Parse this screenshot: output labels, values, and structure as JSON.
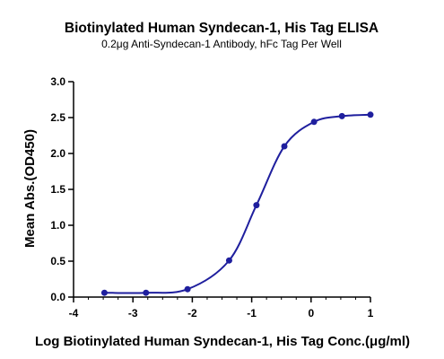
{
  "chart_data": {
    "type": "line",
    "title": "Biotinylated Human Syndecan-1, His Tag ELISA",
    "subtitle": "0.2μg Anti-Syndecan-1 Antibody, hFc Tag Per Well",
    "xlabel": "Log Biotinylated Human Syndecan-1, His Tag Conc.(μg/ml)",
    "ylabel": "Mean Abs.(OD450)",
    "xlim": [
      -4,
      1
    ],
    "ylim": [
      0,
      3
    ],
    "xticks": [
      "-4",
      "-3",
      "-2",
      "-1",
      "0",
      "1"
    ],
    "yticks": [
      "0.0",
      "0.5",
      "1.0",
      "1.5",
      "2.0",
      "2.5",
      "3.0"
    ],
    "grid": false,
    "color": "#1f1f9e",
    "series": [
      {
        "x": [
          -3.48,
          -2.78,
          -2.08,
          -1.38,
          -0.92,
          -0.45,
          0.05,
          0.52,
          1.0
        ],
        "values": [
          0.06,
          0.06,
          0.11,
          0.51,
          1.28,
          2.1,
          2.44,
          2.52,
          2.54
        ]
      }
    ]
  }
}
